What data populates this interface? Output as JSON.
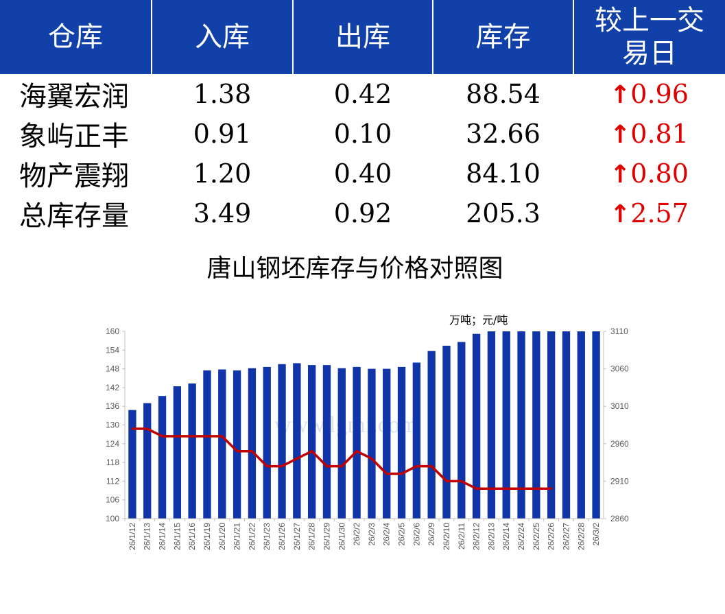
{
  "table": {
    "headers": [
      "仓库",
      "入库",
      "出库",
      "库存",
      "较上一交易日"
    ],
    "rows": [
      {
        "name": "海翼宏润",
        "in": "1.38",
        "out": "0.42",
        "stock": "88.54",
        "arrow": "↑",
        "change": "0.96"
      },
      {
        "name": "象屿正丰",
        "in": "0.91",
        "out": "0.10",
        "stock": "32.66",
        "arrow": "↑",
        "change": "0.81"
      },
      {
        "name": "物产震翔",
        "in": "1.20",
        "out": "0.40",
        "stock": "84.10",
        "arrow": "↑",
        "change": "0.80"
      },
      {
        "name": "总库存量",
        "in": "3.49",
        "out": "0.92",
        "stock": "205.3",
        "arrow": "↑",
        "change": "2.57"
      }
    ]
  },
  "colors": {
    "header_bg": "#1040a8",
    "bar": "#1035a8",
    "line": "#c00000",
    "up": "#e00000"
  },
  "chart_data": {
    "type": "bar",
    "title": "唐山钢坯库存与价格对照图",
    "units_label": "万吨；元/吨",
    "watermark": "www.lgmi.com",
    "categories": [
      "26/1/12",
      "26/1/13",
      "26/1/14",
      "26/1/15",
      "26/1/16",
      "26/1/19",
      "26/1/20",
      "26/1/21",
      "26/1/22",
      "26/1/23",
      "26/1/26",
      "26/1/27",
      "26/1/28",
      "26/1/29",
      "26/1/30",
      "26/2/2",
      "26/2/3",
      "26/2/4",
      "26/2/5",
      "26/2/6",
      "26/2/9",
      "26/2/10",
      "26/2/11",
      "26/2/12",
      "26/2/13",
      "26/2/14",
      "26/2/24",
      "26/2/25",
      "26/2/26",
      "26/2/27",
      "26/2/28",
      "26/3/2"
    ],
    "series": [
      {
        "type": "bar",
        "axis": "left",
        "values": [
          134.8,
          137.0,
          139.3,
          142.4,
          143.3,
          147.5,
          147.8,
          147.5,
          148.2,
          148.6,
          149.5,
          149.8,
          149.2,
          149.2,
          148.2,
          148.6,
          148.0,
          148.0,
          148.6,
          150.0,
          153.7,
          155.4,
          156.6,
          159.2,
          160,
          160,
          160,
          160,
          160,
          160,
          160,
          160
        ]
      },
      {
        "type": "line",
        "axis": "right",
        "values": [
          2980,
          2980,
          2970,
          2970,
          2970,
          2970,
          2970,
          2950,
          2950,
          2930,
          2930,
          2940,
          2950,
          2930,
          2930,
          2950,
          2940,
          2920,
          2920,
          2930,
          2930,
          2910,
          2910,
          2900,
          2900,
          2900,
          2900,
          2900,
          2900,
          null,
          null,
          null
        ]
      }
    ],
    "y_left": {
      "min": 100,
      "max": 160,
      "ticks": [
        100,
        106,
        112,
        118,
        124,
        130,
        136,
        142,
        148,
        154,
        160
      ]
    },
    "y_right": {
      "min": 2860,
      "max": 3110,
      "ticks": [
        2860,
        2910,
        2960,
        3010,
        3060,
        3110
      ]
    },
    "grid": false,
    "legend": "none"
  }
}
